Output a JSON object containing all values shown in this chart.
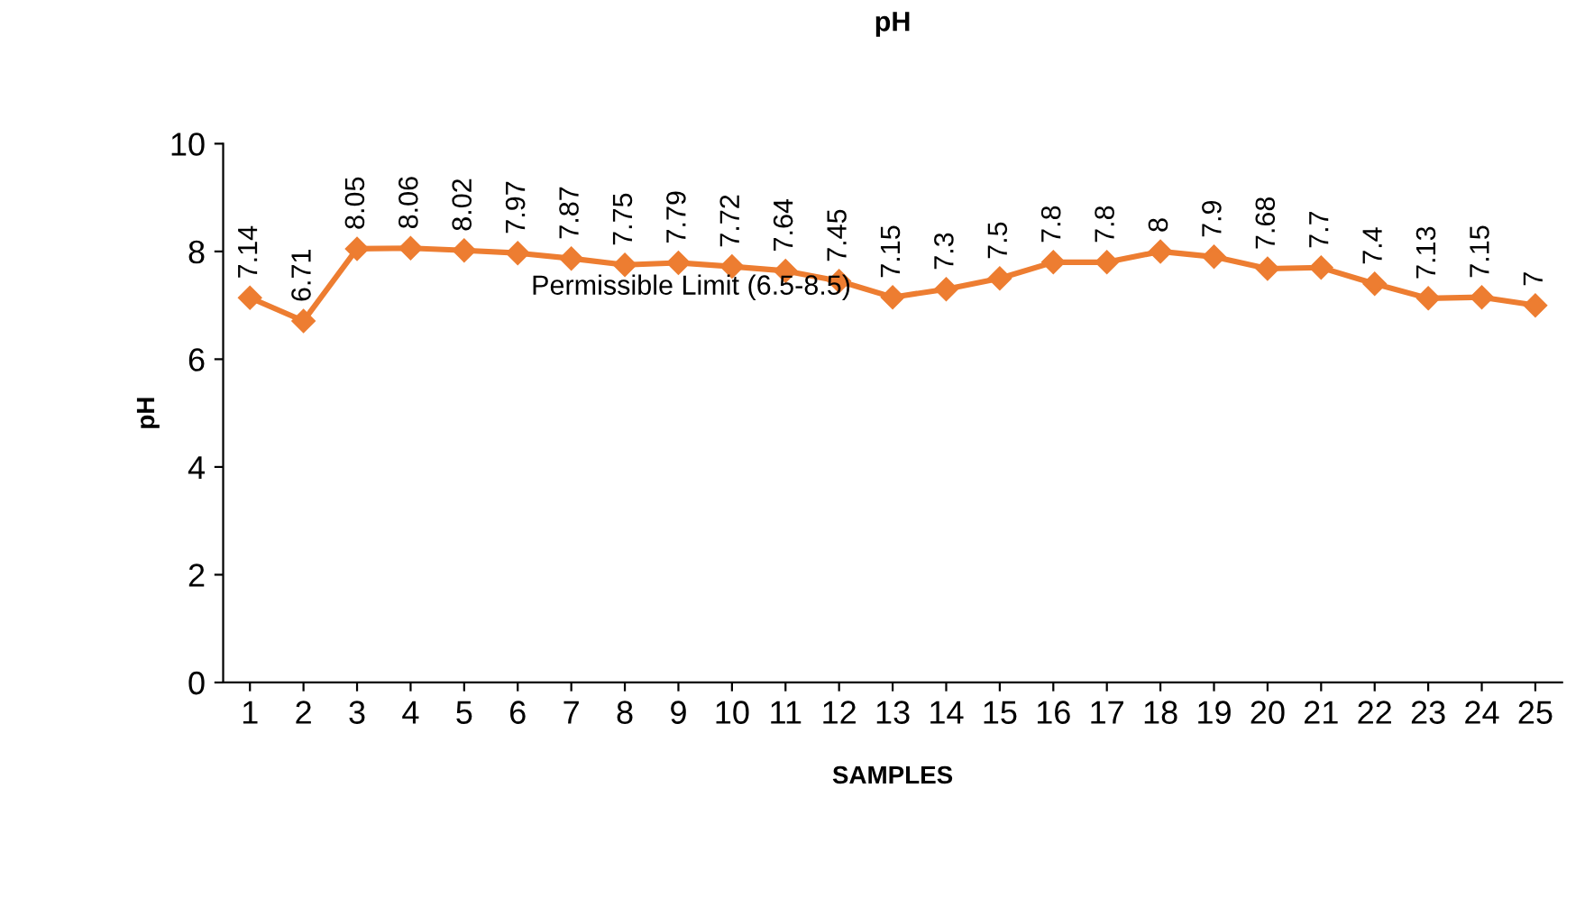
{
  "chart_data": {
    "type": "line",
    "title": "pH",
    "xlabel": "SAMPLES",
    "ylabel": "pH",
    "categories": [
      "1",
      "2",
      "3",
      "4",
      "5",
      "6",
      "7",
      "8",
      "9",
      "10",
      "11",
      "12",
      "13",
      "14",
      "15",
      "16",
      "17",
      "18",
      "19",
      "20",
      "21",
      "22",
      "23",
      "24",
      "25"
    ],
    "series": [
      {
        "color": "#ed7d31",
        "values": [
          7.14,
          6.71,
          8.05,
          8.06,
          8.02,
          7.97,
          7.87,
          7.75,
          7.79,
          7.72,
          7.64,
          7.45,
          7.15,
          7.3,
          7.5,
          7.8,
          7.8,
          8,
          7.9,
          7.68,
          7.7,
          7.4,
          7.13,
          7.15,
          7
        ]
      }
    ],
    "ylim": [
      0,
      10
    ],
    "yticks": [
      0,
      2,
      4,
      6,
      8,
      10
    ],
    "data_labels": true,
    "marker": "diamond",
    "line_style": "solid",
    "grid": false,
    "legend": false,
    "annotations": [
      "Permissible Limit (6.5-8.5)"
    ]
  }
}
